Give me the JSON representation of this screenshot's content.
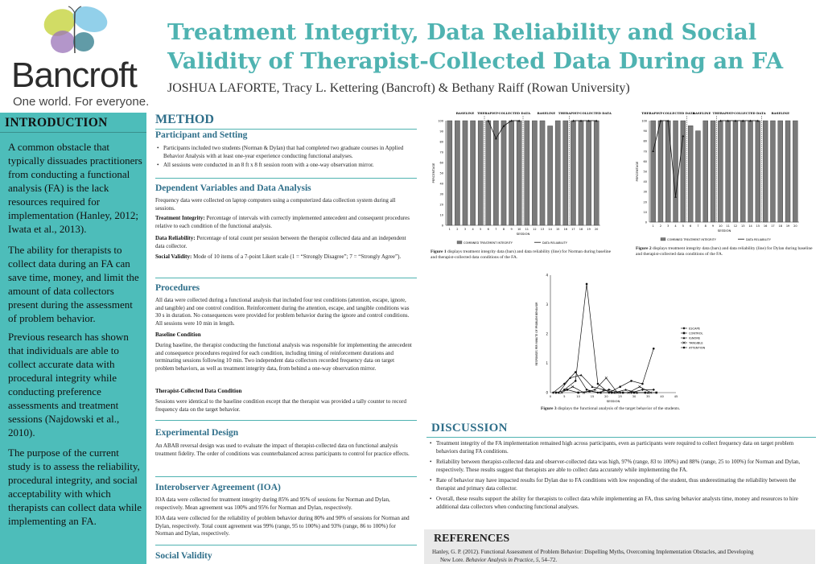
{
  "header": {
    "brand": "Bancroft",
    "tagline": "One world. For everyone.",
    "title_line1": "Treatment Integrity, Data Reliability and Social",
    "title_line2": "Validity of Therapist-Collected Data During an FA",
    "authors": "JOSHUA LAFORTE, Tracy L. Kettering (Bancroft) & Bethany Raiff (Rowan University)",
    "logo_colors": [
      "#c9d64a",
      "#7fc8e6",
      "#9a73b8",
      "#2c7a8a"
    ]
  },
  "intro": {
    "heading": "INTRODUCTION",
    "paragraphs": [
      "A common obstacle that typically dissuades practitioners from conducting a functional analysis (FA) is the lack resources required for implementation (Hanley, 2012; Iwata et al., 2013).",
      "The ability for therapists to collect data during an FA can save time, money, and limit the amount of data collectors present during the assessment of problem behavior.",
      "Previous research has shown that individuals are able to collect accurate data with procedural integrity while conducting preference assessments and treatment sessions (Najdowski et al., 2010).",
      "The purpose of the current study is to assess the reliability, procedural integrity, and social acceptability with which therapists can collect data while implementing an FA."
    ]
  },
  "method": {
    "heading": "METHOD",
    "participants": {
      "heading": "Participant and Setting",
      "bullets": [
        "Participants included two students (Norman & Dylan) that had completed two graduate courses in Applied Behavior Analysis with at least one-year experience conducting functional analyses.",
        "All sessions were conducted in an 8 ft x 8 ft session room with a one-way observation mirror."
      ]
    },
    "dv": {
      "heading": "Dependent Variables and Data Analysis",
      "p1": "Frequency data were collected on laptop computers using a computerized data collection system during all sessions.",
      "ti_label": "Treatment Integrity:",
      "ti_text": " Percentage of intervals with correctly implemented antecedent and consequent procedures relative to each condition of the functional analysis.",
      "dr_label": "Data Reliability:",
      "dr_text": " Percentage of total count per session between the therapist collected data and an independent data collector.",
      "sv_label": "Social Validity:",
      "sv_text": " Mode of 10 items of a 7-point Likert scale (1 = “Strongly Disagree”; 7 = “Strongly Agree”)."
    },
    "procedures": {
      "heading": "Procedures",
      "p1": "All data were collected during a functional analysis that included four test conditions (attention, escape, ignore, and tangible) and one control condition. Reinforcement during the attention, escape, and tangible conditions was 30 s in duration. No consequences were provided for problem behavior during the ignore and control conditions. All sessions were 10 min in length.",
      "baseline_heading": "Baseline Condition",
      "baseline_text": "During baseline, the therapist conducting the functional analysis was responsible for implementing the antecedent and consequence procedures required for each condition, including timing of reinforcement durations and terminating sessions following 10 min. Two independent data collectors recorded frequency data on target problem behaviors, as well as treatment integrity data, from behind a one-way observation mirror.",
      "tc_heading": "Therapist-Collected Data Condition",
      "tc_text": "Sessions were identical to the baseline condition except that the therapist was provided a tally counter to record frequency data on the target behavior."
    },
    "design": {
      "heading": "Experimental Design",
      "text": "An ABAB reversal design was used to evaluate the impact of therapist-collected data on functional analysis treatment fidelity. The order of conditions was counterbalanced across participants to control for practice effects."
    },
    "ioa": {
      "heading": "Interobserver Agreement (IOA)",
      "p1": "IOA data were collected for treatment integrity during 85% and 95% of sessions for Norman and Dylan, respectively. Mean agreement was 100% and 95% for Norman and Dylan, respectively.",
      "p2": "IOA data were collected for the reliability of problem behavior during 80% and 90% of sessions for Norman and Dylan, respectively. Total count agreement was 99% (range, 95 to 100%) and 93% (range, 86 to 100%) for Norman and Dylan, respectively."
    },
    "social_validity_heading": "Social Validity"
  },
  "figures": {
    "fig1": {
      "phase_labels": [
        "BASELINE",
        "THERAPIST-COLLECTED DATA",
        "BASELINE",
        "THERAPIST-COLLECTED DATA"
      ],
      "ylabel": "PERCENTAGE",
      "xlabel": "SESSION",
      "legend": [
        "COMBINED TREATMENT INTEGRITY",
        "DATA RELIABILITY"
      ],
      "caption_label": "Figure 1",
      "caption_text": " displays treatment integrity data (bars) and data reliability (line) for Norman during baseline and therapist-collected data conditions of the FA."
    },
    "fig2": {
      "phase_labels": [
        "THERAPIST-COLLECTED DATA",
        "BASELINE",
        "THERAPIST-COLLECTED DATA",
        "BASELINE"
      ],
      "ylabel": "PERCENTAGE",
      "xlabel": "SESSION",
      "legend": [
        "COMBINED TREATMENT INTEGRITY",
        "DATA RELIABILITY"
      ],
      "caption_label": "Figure 2",
      "caption_text": " displays treatment integrity data (bars) and data reliability (line) for Dylan during baseline and therapist-collected data conditions of the FA."
    },
    "fig3": {
      "ylabel": "RESPONSES PER MINUTE OF PROBLEM BEHAVIOR",
      "xlabel": "SESSION",
      "legend": [
        "ESCAPE",
        "CONTROL",
        "IGNORE",
        "TANGIBLE",
        "ATTENTION"
      ],
      "caption_label": "Figure 3",
      "caption_text": " displays the functional analysis of the target behavior of the students."
    }
  },
  "chart_data": [
    {
      "type": "bar",
      "title": "",
      "xlabel": "SESSION",
      "ylabel": "PERCENTAGE",
      "ylim": [
        0,
        100
      ],
      "x": [
        1,
        2,
        3,
        4,
        5,
        6,
        7,
        8,
        9,
        10,
        11,
        12,
        13,
        14,
        15,
        16,
        17,
        18,
        19,
        20
      ],
      "series": [
        {
          "name": "COMBINED TREATMENT INTEGRITY",
          "values": [
            100,
            100,
            100,
            100,
            100,
            100,
            100,
            100,
            100,
            100,
            100,
            100,
            100,
            95,
            100,
            100,
            100,
            100,
            100,
            100
          ]
        },
        {
          "name": "DATA RELIABILITY",
          "x": [
            6,
            7,
            8,
            9,
            10,
            17,
            18,
            19,
            20
          ],
          "values": [
            100,
            83,
            95,
            100,
            100,
            100,
            100,
            100,
            100
          ]
        }
      ],
      "phases": [
        "BASELINE",
        "THERAPIST-COLLECTED DATA",
        "BASELINE",
        "THERAPIST-COLLECTED DATA"
      ]
    },
    {
      "type": "bar",
      "title": "",
      "xlabel": "SESSION",
      "ylabel": "PERCENTAGE",
      "ylim": [
        0,
        100
      ],
      "x": [
        1,
        2,
        3,
        4,
        5,
        6,
        7,
        8,
        9,
        10,
        11,
        12,
        13,
        14,
        15,
        16,
        17,
        18,
        19,
        20
      ],
      "series": [
        {
          "name": "COMBINED TREATMENT INTEGRITY",
          "values": [
            100,
            100,
            100,
            100,
            100,
            95,
            90,
            100,
            100,
            100,
            100,
            100,
            100,
            100,
            100,
            100,
            100,
            100,
            100,
            100
          ]
        },
        {
          "name": "DATA RELIABILITY",
          "x": [
            1,
            2,
            3,
            4,
            5,
            10,
            11,
            12,
            13,
            14,
            15
          ],
          "values": [
            70,
            100,
            100,
            25,
            85,
            100,
            100,
            100,
            100,
            100,
            100
          ]
        }
      ],
      "phases": [
        "THERAPIST-COLLECTED DATA",
        "BASELINE",
        "THERAPIST-COLLECTED DATA",
        "BASELINE"
      ]
    },
    {
      "type": "line",
      "title": "",
      "xlabel": "SESSION",
      "ylabel": "RESPONSES PER MINUTE OF PROBLEM BEHAVIOR",
      "ylim": [
        0,
        4
      ],
      "xlim": [
        0,
        45
      ],
      "series": [
        {
          "name": "ESCAPE",
          "x": [
            1,
            5,
            9,
            13,
            17,
            21,
            25,
            29,
            33,
            37
          ],
          "values": [
            0,
            0.3,
            0.7,
            0.1,
            0,
            0.1,
            0,
            0,
            0.1,
            0.1
          ]
        },
        {
          "name": "CONTROL",
          "x": [
            2,
            6,
            10,
            14,
            18,
            22,
            26,
            30,
            34,
            38
          ],
          "values": [
            0,
            0.1,
            0,
            0.05,
            0,
            0,
            0,
            0,
            0,
            0
          ]
        },
        {
          "name": "IGNORE",
          "x": [
            3,
            7,
            11,
            15,
            19,
            23,
            27,
            31,
            35
          ],
          "values": [
            0,
            0.5,
            0.6,
            0.2,
            0.1,
            0,
            0.1,
            0,
            0
          ]
        },
        {
          "name": "TANGIBLE",
          "x": [
            4,
            8,
            12,
            16,
            20,
            24,
            28,
            32,
            36
          ],
          "values": [
            0,
            0.2,
            0,
            0.1,
            0.5,
            0,
            0,
            0.2,
            0
          ]
        },
        {
          "name": "ATTENTION",
          "x": [
            5,
            9,
            13,
            17,
            21,
            25,
            29,
            33,
            37
          ],
          "values": [
            0.1,
            0.4,
            3.7,
            0.3,
            0,
            0.2,
            0.4,
            0.3,
            1.5
          ]
        }
      ]
    }
  ],
  "discussion": {
    "heading": "DISCUSSION",
    "bullets": [
      "Treatment integrity of the FA implementation remained high across participants, even as participants were required to collect frequency data on target problem behaviors during FA conditions.",
      "Reliability between therapist-collected data and observer-collected data was high, 97% (range, 83 to 100%) and 88% (range, 25 to 100%) for Norman and Dylan, respectively. These results suggest that therapists are able to collect data accurately while implementing the FA.",
      "Rate of behavior may have impacted results for Dylan due to FA conditions with low responding of the student, thus underestimating the reliability between the therapist and primary data collector.",
      "Overall, these results support the ability for therapists to collect data while implementing an FA, thus saving behavior analysts time, money and resources to hire additional data collectors when conducting functional analyses."
    ]
  },
  "references": {
    "heading": "REFERENCES",
    "ref1_a": "Hanley, G. P. (2012). Functional Assessment of Problem Behavior: Dispelling Myths, Overcoming Implementation Obstacles, and Developing",
    "ref1_b": "New Lore. ",
    "ref1_journal": "Behavior Analysis in Practice, 5",
    "ref1_end": ", 54–72."
  }
}
